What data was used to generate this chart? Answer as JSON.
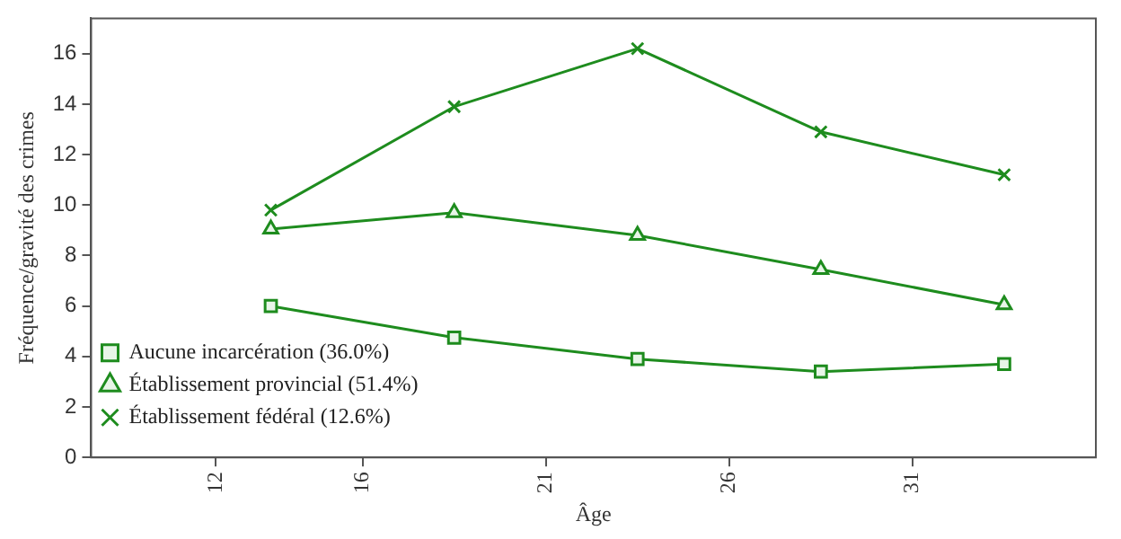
{
  "chart_data": {
    "type": "line",
    "xlabel": "Âge",
    "ylabel": "Fréquence/gravité des crimes",
    "x": [
      13.5,
      18.5,
      23.5,
      28.5,
      33.5
    ],
    "xlim": [
      8.6,
      36
    ],
    "xticks": [
      12,
      16,
      21,
      26,
      31
    ],
    "ylim": [
      0,
      17.4
    ],
    "yticks": [
      0,
      2,
      4,
      6,
      8,
      10,
      12,
      14,
      16
    ],
    "grid": false,
    "legend": "bottom left",
    "line_style": "solid",
    "series": [
      {
        "name": "Aucune incarcération (36.0%)",
        "color": "#1e8c1e",
        "marker": "square",
        "values": [
          6.0,
          4.75,
          3.9,
          3.4,
          3.7
        ]
      },
      {
        "name": "Établissement provincial (51.4%)",
        "color": "#1e8c1e",
        "marker": "triangle",
        "values": [
          9.05,
          9.7,
          8.8,
          7.45,
          6.05
        ]
      },
      {
        "name": "Établissement fédéral (12.6%)",
        "color": "#1e8c1e",
        "marker": "cross",
        "values": [
          9.8,
          13.9,
          16.2,
          12.9,
          11.2
        ]
      }
    ]
  }
}
